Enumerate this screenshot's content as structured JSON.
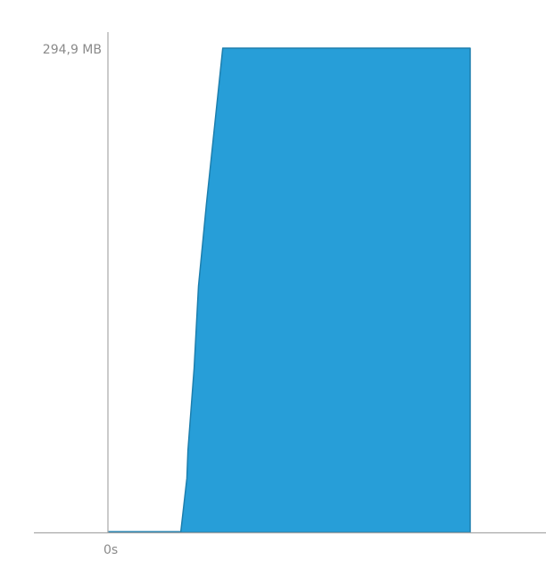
{
  "chart_data": {
    "type": "area",
    "x_unit": "s",
    "y_unit": "MB",
    "x": [
      0,
      20.1,
      21.8,
      22.1,
      23.8,
      25.0,
      27.2,
      31.7,
      33.0,
      100
    ],
    "y": [
      0,
      0,
      33,
      50,
      100,
      150,
      200,
      294.9,
      294.9,
      294.9
    ],
    "xlim": [
      0,
      100
    ],
    "ylim": [
      0,
      294.9
    ],
    "y_tick_label": "294,9 MB",
    "x_tick_label": "0s",
    "color": "#279ed8",
    "stroke_color": "#1d7fae",
    "grid": false,
    "legend": false
  }
}
